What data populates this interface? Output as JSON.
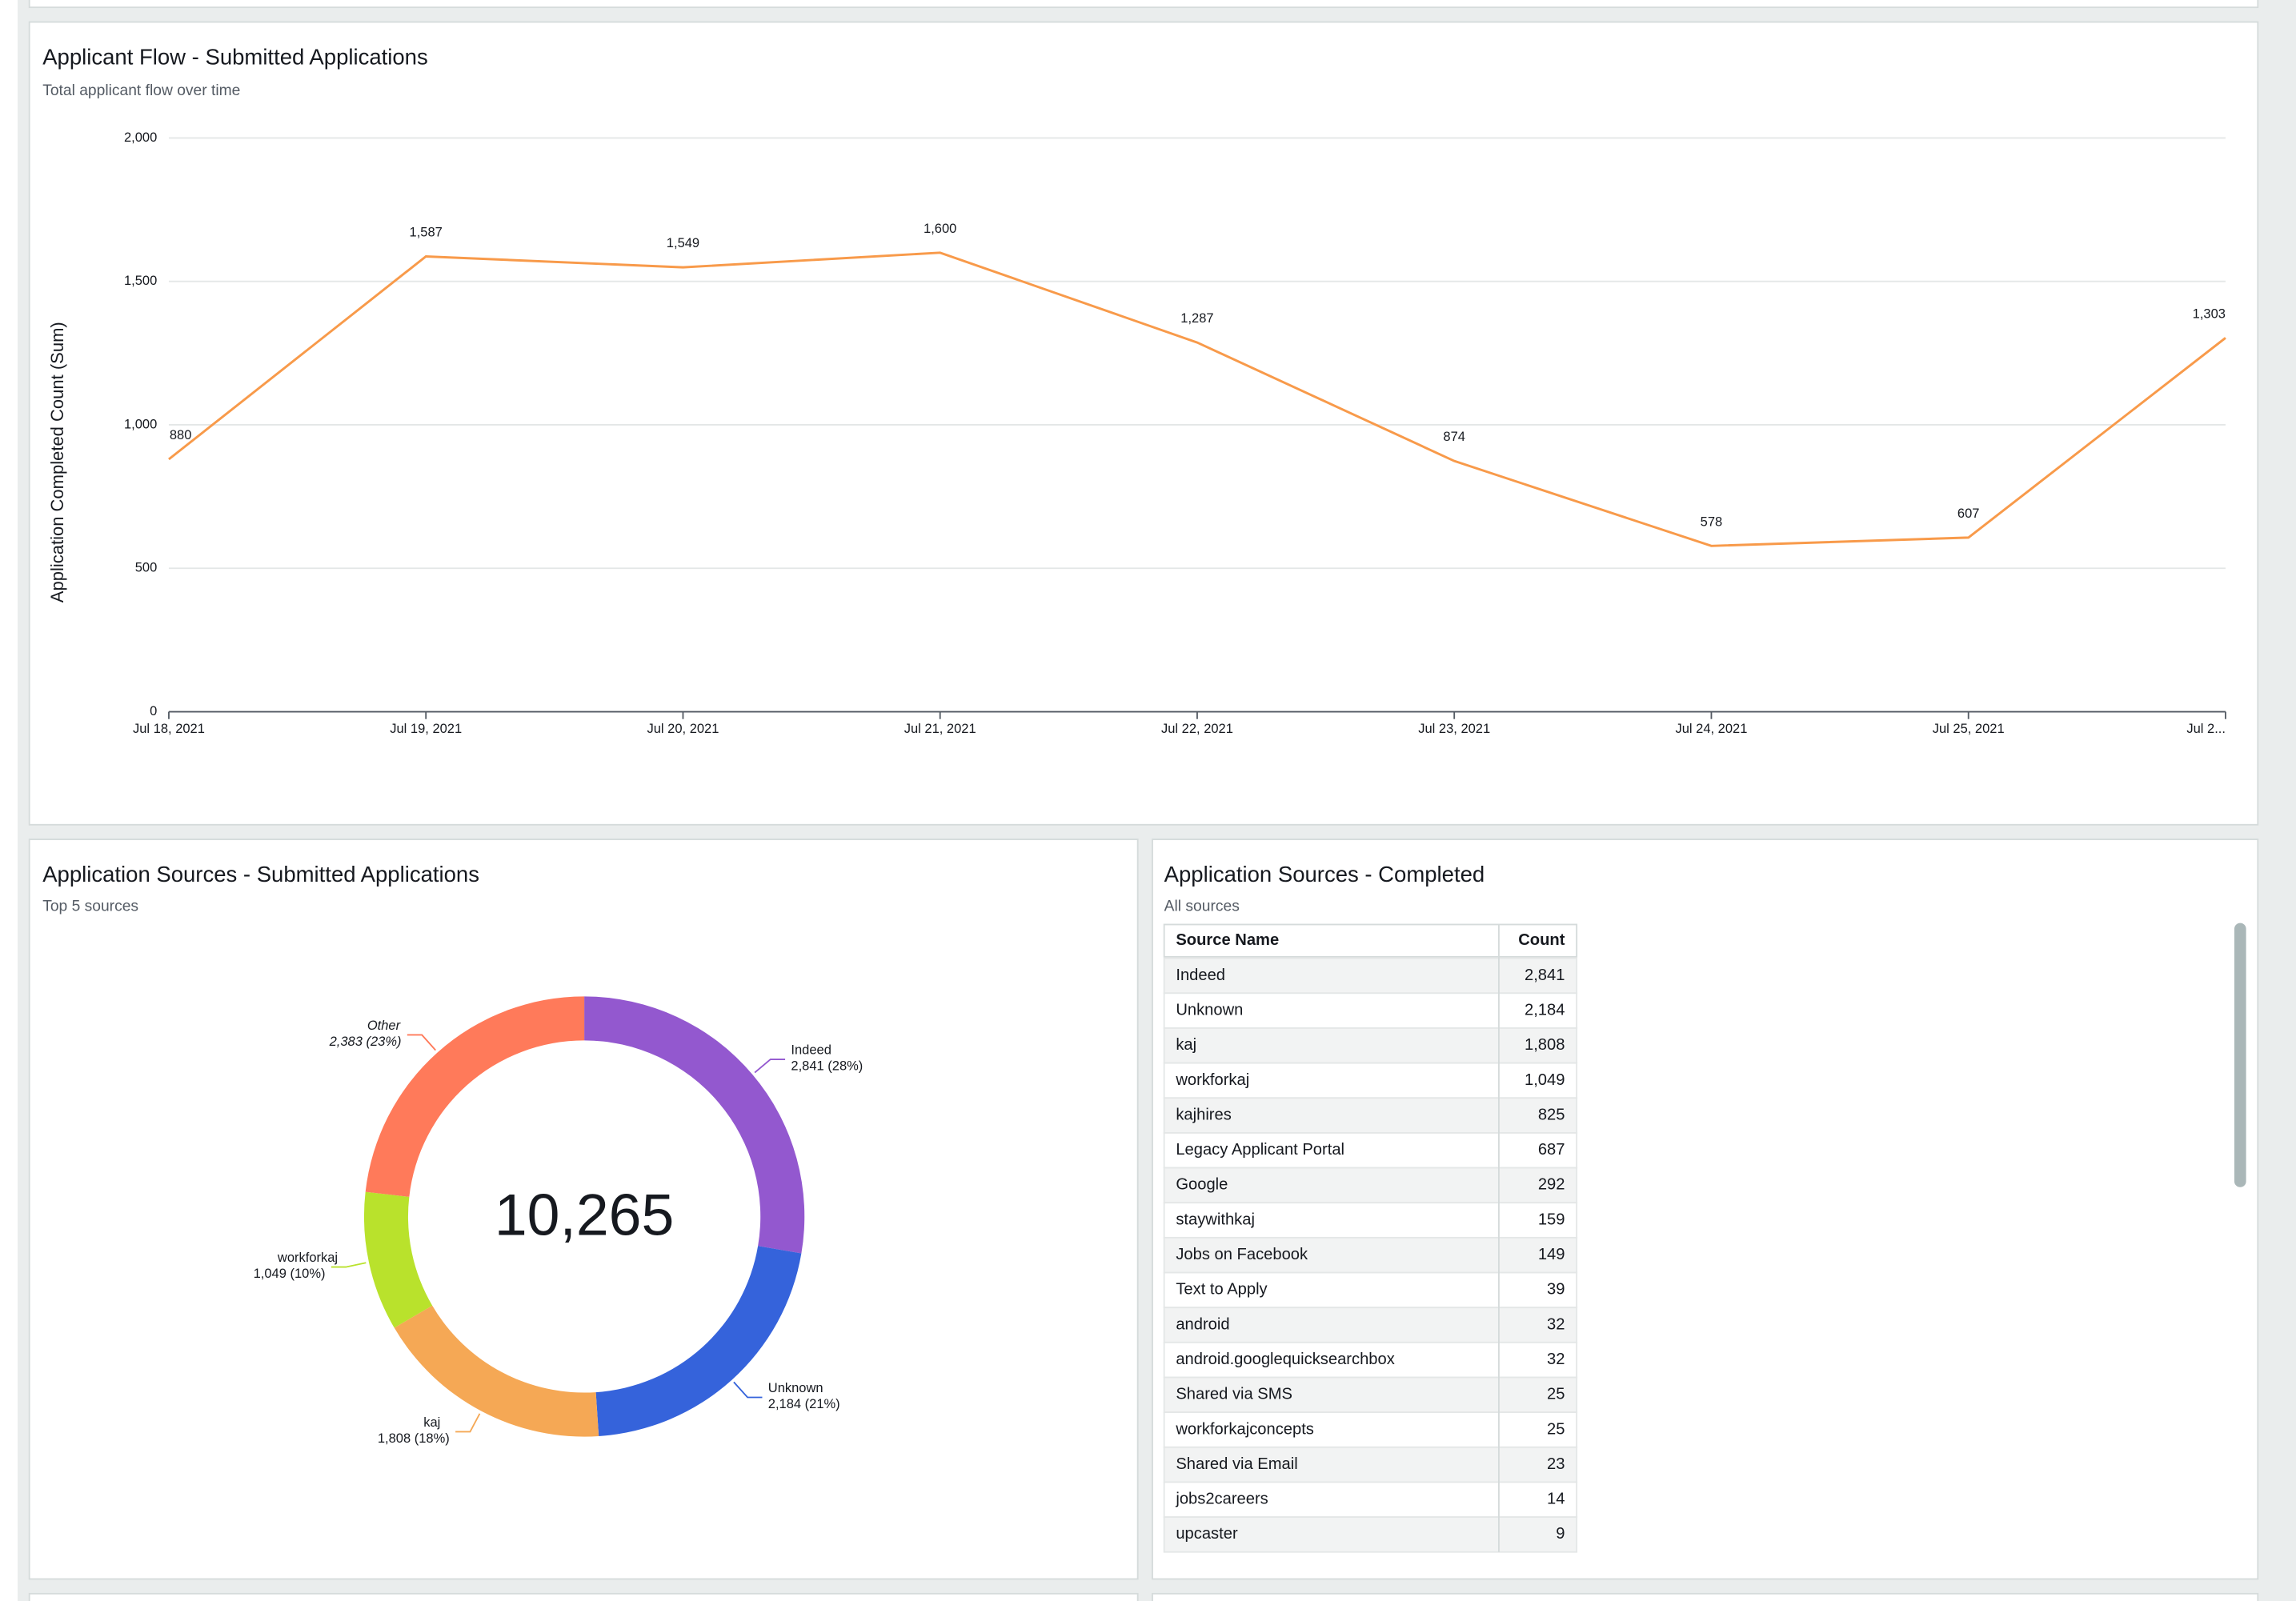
{
  "chart_data": [
    {
      "type": "line",
      "title": "Applicant Flow - Submitted Applications",
      "subtitle": "Total applicant flow over time",
      "y_label": "Application Completed Count (Sum)",
      "x": [
        "Jul 18, 2021",
        "Jul 19, 2021",
        "Jul 20, 2021",
        "Jul 21, 2021",
        "Jul 22, 2021",
        "Jul 23, 2021",
        "Jul 24, 2021",
        "Jul 25, 2021",
        "Jul 2..."
      ],
      "values": [
        880,
        1587,
        1549,
        1600,
        1287,
        874,
        578,
        607,
        1303
      ],
      "value_labels": [
        "880",
        "1,587",
        "1,549",
        "1,600",
        "1,287",
        "874",
        "578",
        "607",
        "1,303"
      ],
      "color": "#f89a4a",
      "ylim": [
        0,
        2000
      ],
      "yticks": [
        0,
        500,
        {
          "value": 1000,
          "label": "1,000"
        },
        {
          "value": 1500,
          "label": "1,500"
        },
        {
          "value": 2000,
          "label": "2,000"
        }
      ],
      "grid": true
    },
    {
      "type": "pie",
      "title": "Application Sources - Submitted Applications",
      "subtitle": "Top 5 sources",
      "categories": [
        "Indeed",
        "Unknown",
        "kaj",
        "workforkaj",
        "Other"
      ],
      "values": [
        2841,
        2184,
        1808,
        1049,
        2383
      ],
      "value_labels": [
        "2,841 (28%)",
        "2,184 (21%)",
        "1,808 (18%)",
        "1,049 (10%)",
        "2,383 (23%)"
      ],
      "colors": [
        "#9358cf",
        "#3563db",
        "#f5a855",
        "#b9e22c",
        "#ff7a5a"
      ],
      "center_label": "10,265"
    }
  ],
  "table": {
    "title": "Application Sources - Completed",
    "subtitle": "All sources",
    "columns": [
      "Source Name",
      "Count"
    ],
    "rows": [
      [
        "Indeed",
        "2,841"
      ],
      [
        "Unknown",
        "2,184"
      ],
      [
        "kaj",
        "1,808"
      ],
      [
        "workforkaj",
        "1,049"
      ],
      [
        "kajhires",
        "825"
      ],
      [
        "Legacy Applicant Portal",
        "687"
      ],
      [
        "Google",
        "292"
      ],
      [
        "staywithkaj",
        "159"
      ],
      [
        "Jobs on Facebook",
        "149"
      ],
      [
        "Text to Apply",
        "39"
      ],
      [
        "android",
        "32"
      ],
      [
        "android.googlequicksearchbox",
        "32"
      ],
      [
        "Shared via SMS",
        "25"
      ],
      [
        "workforkajconcepts",
        "25"
      ],
      [
        "Shared via Email",
        "23"
      ],
      [
        "jobs2careers",
        "14"
      ],
      [
        "upcaster",
        "9"
      ]
    ]
  }
}
